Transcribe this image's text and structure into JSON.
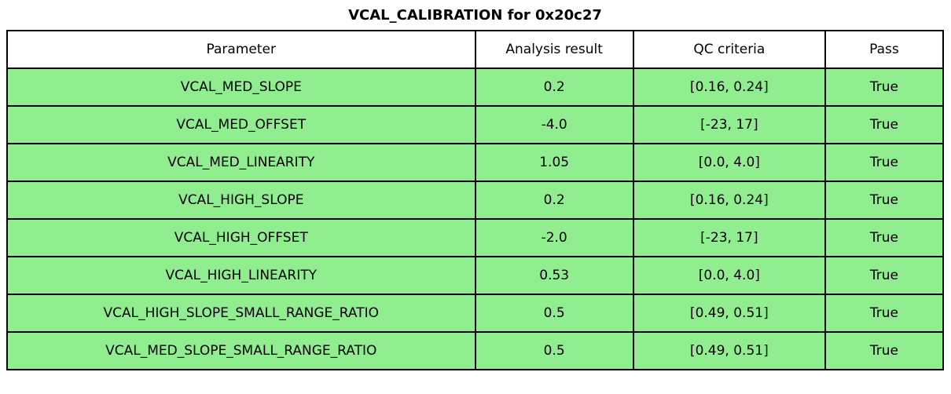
{
  "colors": {
    "pass_row_green": "#90EE90",
    "header_background": "#FFFFFF",
    "border": "#000000",
    "text": "#000000"
  },
  "chart_data": {
    "type": "table",
    "title": "VCAL_CALIBRATION for 0x20c27",
    "columns": [
      "Parameter",
      "Analysis result",
      "QC criteria",
      "Pass"
    ],
    "column_widths_pct": [
      50.0,
      16.9,
      20.5,
      12.6
    ],
    "rows": [
      [
        "VCAL_MED_SLOPE",
        "0.2",
        "[0.16, 0.24]",
        "True"
      ],
      [
        "VCAL_MED_OFFSET",
        "-4.0",
        "[-23, 17]",
        "True"
      ],
      [
        "VCAL_MED_LINEARITY",
        "1.05",
        "[0.0, 4.0]",
        "True"
      ],
      [
        "VCAL_HIGH_SLOPE",
        "0.2",
        "[0.16, 0.24]",
        "True"
      ],
      [
        "VCAL_HIGH_OFFSET",
        "-2.0",
        "[-23, 17]",
        "True"
      ],
      [
        "VCAL_HIGH_LINEARITY",
        "0.53",
        "[0.0, 4.0]",
        "True"
      ],
      [
        "VCAL_HIGH_SLOPE_SMALL_RANGE_RATIO",
        "0.5",
        "[0.49, 0.51]",
        "True"
      ],
      [
        "VCAL_MED_SLOPE_SMALL_RANGE_RATIO",
        "0.5",
        "[0.49, 0.51]",
        "True"
      ]
    ],
    "row_fill_color": "#90EE90",
    "header_fill_color": "#FFFFFF",
    "all_pass": true
  }
}
